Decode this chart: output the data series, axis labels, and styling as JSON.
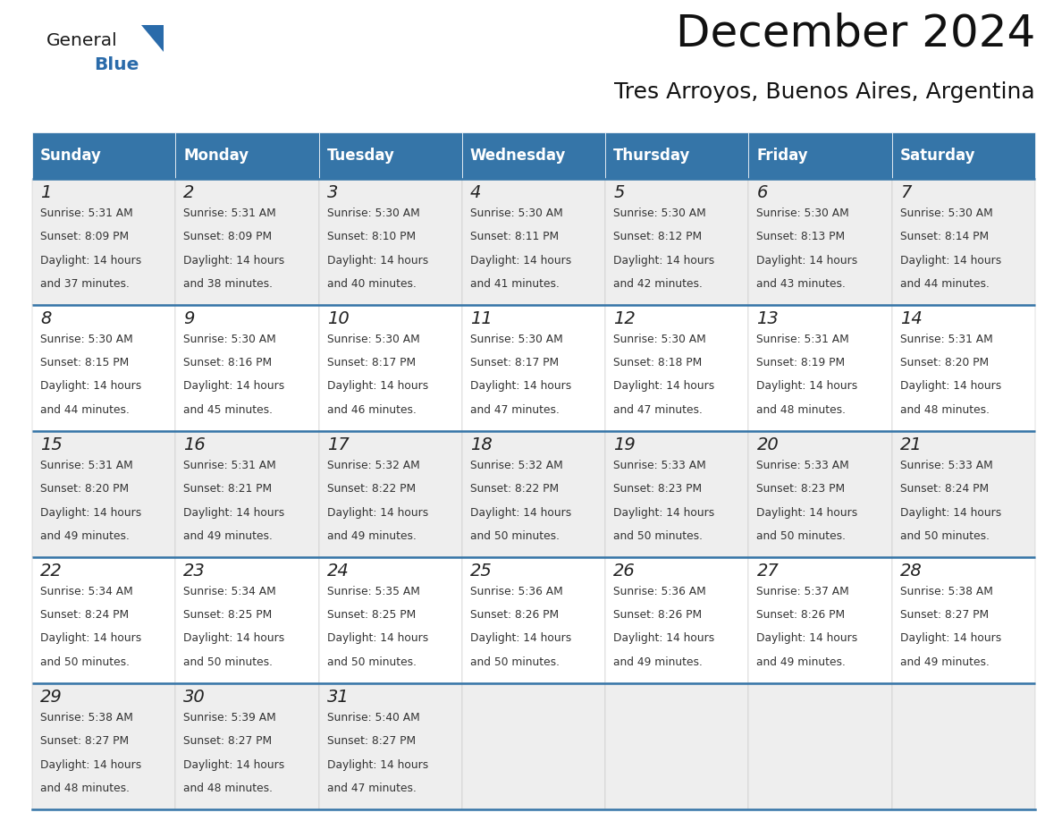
{
  "title": "December 2024",
  "subtitle": "Tres Arroyos, Buenos Aires, Argentina",
  "header_bg_color": "#3575a8",
  "header_text_color": "#ffffff",
  "cell_bg_even": "#eeeeee",
  "cell_bg_odd": "#ffffff",
  "divider_color": "#3575a8",
  "border_color": "#bbbbbb",
  "day_names": [
    "Sunday",
    "Monday",
    "Tuesday",
    "Wednesday",
    "Thursday",
    "Friday",
    "Saturday"
  ],
  "title_font_size": 36,
  "subtitle_font_size": 18,
  "header_font_size": 12,
  "date_font_size": 14,
  "info_font_size": 8.8,
  "logo_general_color": "#1a1a1a",
  "logo_blue_color": "#2a6baa",
  "logo_triangle_color": "#2a6baa",
  "weeks": [
    [
      {
        "day": 1,
        "sunrise": "5:31 AM",
        "sunset": "8:09 PM",
        "daylight_min": 37
      },
      {
        "day": 2,
        "sunrise": "5:31 AM",
        "sunset": "8:09 PM",
        "daylight_min": 38
      },
      {
        "day": 3,
        "sunrise": "5:30 AM",
        "sunset": "8:10 PM",
        "daylight_min": 40
      },
      {
        "day": 4,
        "sunrise": "5:30 AM",
        "sunset": "8:11 PM",
        "daylight_min": 41
      },
      {
        "day": 5,
        "sunrise": "5:30 AM",
        "sunset": "8:12 PM",
        "daylight_min": 42
      },
      {
        "day": 6,
        "sunrise": "5:30 AM",
        "sunset": "8:13 PM",
        "daylight_min": 43
      },
      {
        "day": 7,
        "sunrise": "5:30 AM",
        "sunset": "8:14 PM",
        "daylight_min": 44
      }
    ],
    [
      {
        "day": 8,
        "sunrise": "5:30 AM",
        "sunset": "8:15 PM",
        "daylight_min": 44
      },
      {
        "day": 9,
        "sunrise": "5:30 AM",
        "sunset": "8:16 PM",
        "daylight_min": 45
      },
      {
        "day": 10,
        "sunrise": "5:30 AM",
        "sunset": "8:17 PM",
        "daylight_min": 46
      },
      {
        "day": 11,
        "sunrise": "5:30 AM",
        "sunset": "8:17 PM",
        "daylight_min": 47
      },
      {
        "day": 12,
        "sunrise": "5:30 AM",
        "sunset": "8:18 PM",
        "daylight_min": 47
      },
      {
        "day": 13,
        "sunrise": "5:31 AM",
        "sunset": "8:19 PM",
        "daylight_min": 48
      },
      {
        "day": 14,
        "sunrise": "5:31 AM",
        "sunset": "8:20 PM",
        "daylight_min": 48
      }
    ],
    [
      {
        "day": 15,
        "sunrise": "5:31 AM",
        "sunset": "8:20 PM",
        "daylight_min": 49
      },
      {
        "day": 16,
        "sunrise": "5:31 AM",
        "sunset": "8:21 PM",
        "daylight_min": 49
      },
      {
        "day": 17,
        "sunrise": "5:32 AM",
        "sunset": "8:22 PM",
        "daylight_min": 49
      },
      {
        "day": 18,
        "sunrise": "5:32 AM",
        "sunset": "8:22 PM",
        "daylight_min": 50
      },
      {
        "day": 19,
        "sunrise": "5:33 AM",
        "sunset": "8:23 PM",
        "daylight_min": 50
      },
      {
        "day": 20,
        "sunrise": "5:33 AM",
        "sunset": "8:23 PM",
        "daylight_min": 50
      },
      {
        "day": 21,
        "sunrise": "5:33 AM",
        "sunset": "8:24 PM",
        "daylight_min": 50
      }
    ],
    [
      {
        "day": 22,
        "sunrise": "5:34 AM",
        "sunset": "8:24 PM",
        "daylight_min": 50
      },
      {
        "day": 23,
        "sunrise": "5:34 AM",
        "sunset": "8:25 PM",
        "daylight_min": 50
      },
      {
        "day": 24,
        "sunrise": "5:35 AM",
        "sunset": "8:25 PM",
        "daylight_min": 50
      },
      {
        "day": 25,
        "sunrise": "5:36 AM",
        "sunset": "8:26 PM",
        "daylight_min": 50
      },
      {
        "day": 26,
        "sunrise": "5:36 AM",
        "sunset": "8:26 PM",
        "daylight_min": 49
      },
      {
        "day": 27,
        "sunrise": "5:37 AM",
        "sunset": "8:26 PM",
        "daylight_min": 49
      },
      {
        "day": 28,
        "sunrise": "5:38 AM",
        "sunset": "8:27 PM",
        "daylight_min": 49
      }
    ],
    [
      {
        "day": 29,
        "sunrise": "5:38 AM",
        "sunset": "8:27 PM",
        "daylight_min": 48
      },
      {
        "day": 30,
        "sunrise": "5:39 AM",
        "sunset": "8:27 PM",
        "daylight_min": 48
      },
      {
        "day": 31,
        "sunrise": "5:40 AM",
        "sunset": "8:27 PM",
        "daylight_min": 47
      },
      null,
      null,
      null,
      null
    ]
  ]
}
